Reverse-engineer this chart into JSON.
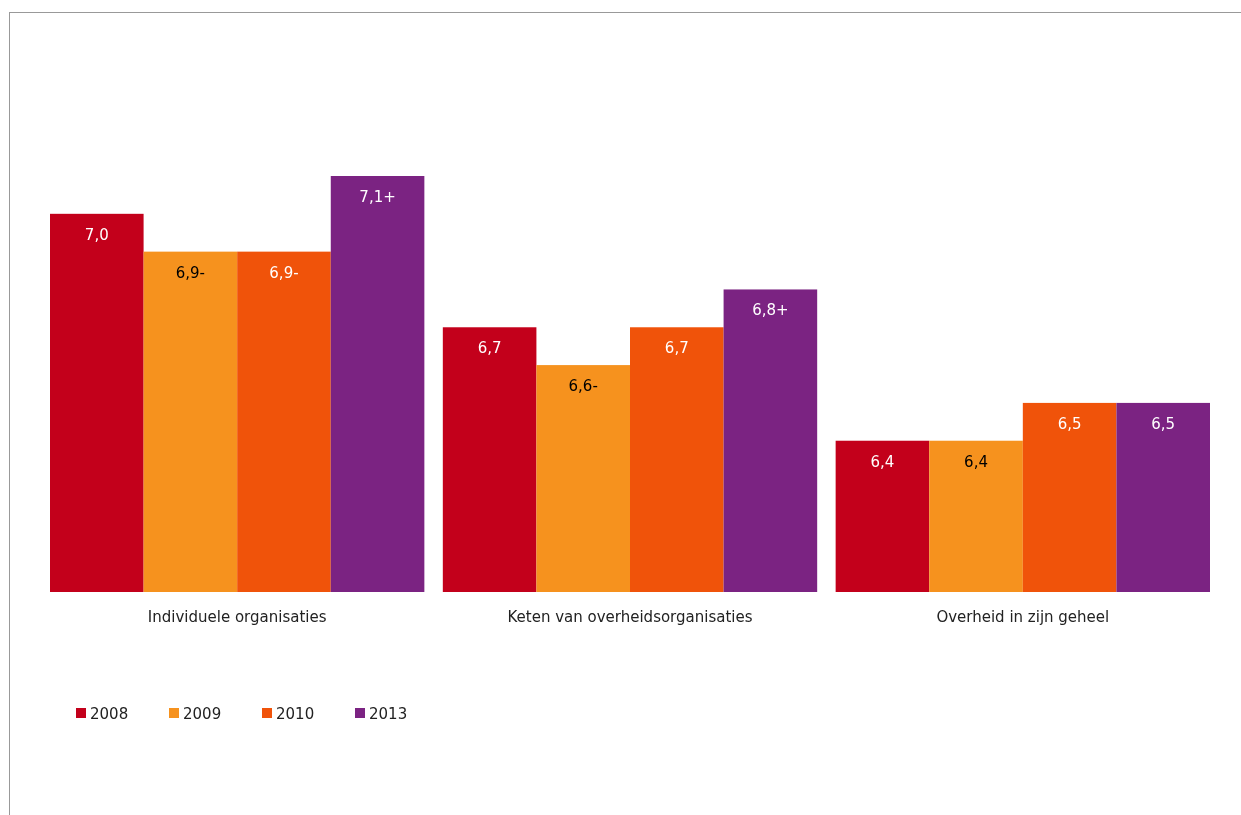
{
  "chart_data": {
    "type": "bar",
    "categories": [
      "Individuele organisaties",
      "Keten van overheidsorganisaties",
      "Overheid in zijn geheel"
    ],
    "series": [
      {
        "name": "2008",
        "color": "#c3001b",
        "values": [
          7.0,
          6.7,
          6.4
        ],
        "value_labels": [
          "7,0",
          "6,7",
          "6,4"
        ]
      },
      {
        "name": "2009",
        "color": "#f6921e",
        "values": [
          6.9,
          6.6,
          6.4
        ],
        "value_labels": [
          "6,9-",
          "6,6-",
          "6,4"
        ]
      },
      {
        "name": "2010",
        "color": "#f0530a",
        "values": [
          6.9,
          6.7,
          6.5
        ],
        "value_labels": [
          "6,9-",
          "6,7",
          "6,5"
        ]
      },
      {
        "name": "2013",
        "color": "#7b2382",
        "values": [
          7.1,
          6.8,
          6.5
        ],
        "value_labels": [
          "7,1+",
          "6,8+",
          "6,5"
        ]
      }
    ],
    "ylim": [
      6,
      7.1
    ],
    "tick_labels": "x",
    "legend": "bottom left"
  }
}
